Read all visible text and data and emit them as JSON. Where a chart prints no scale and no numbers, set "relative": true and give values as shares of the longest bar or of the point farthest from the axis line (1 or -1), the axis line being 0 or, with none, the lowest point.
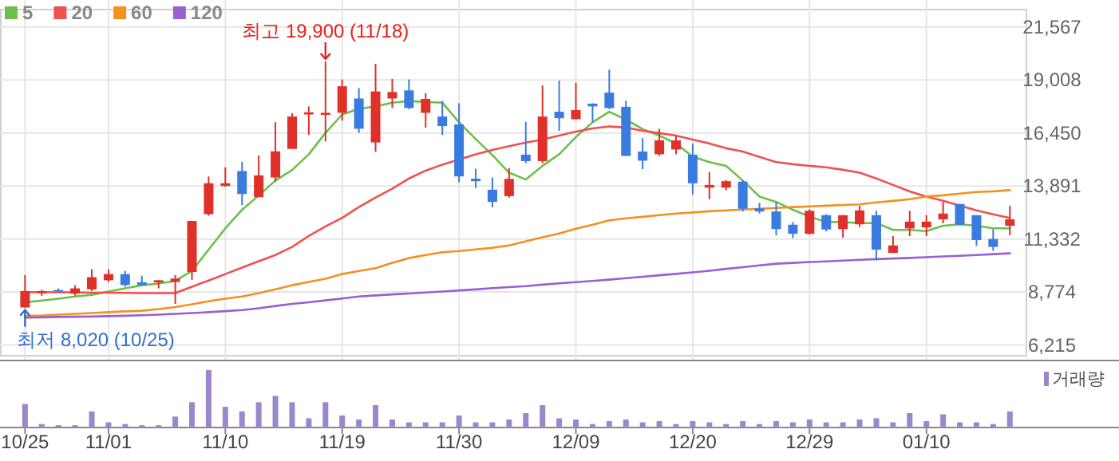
{
  "chart_data": [
    {
      "type": "candlestick",
      "tick_labels": "y",
      "grid": true,
      "legend": "top left",
      "categories": [
        "10/25",
        null,
        null,
        null,
        null,
        "11/01",
        null,
        null,
        null,
        null,
        null,
        null,
        "11/10",
        null,
        null,
        null,
        null,
        null,
        null,
        "11/19",
        null,
        null,
        null,
        null,
        null,
        null,
        "11/30",
        null,
        null,
        null,
        null,
        null,
        null,
        "12/09",
        null,
        null,
        null,
        null,
        null,
        null,
        "12/20",
        null,
        null,
        null,
        null,
        null,
        null,
        "12/29",
        null,
        null,
        null,
        null,
        null,
        null,
        "01/10",
        null,
        null,
        null,
        null,
        null
      ],
      "ylim": [
        5700,
        22400
      ],
      "yticks": [
        {
          "value": 6215,
          "label": "6,215"
        },
        {
          "value": 8774,
          "label": "8,774"
        },
        {
          "value": 11332,
          "label": "11,332"
        },
        {
          "value": 13891,
          "label": "13,891"
        },
        {
          "value": 16450,
          "label": "16,450"
        },
        {
          "value": 19008,
          "label": "19,008"
        },
        {
          "value": 21567,
          "label": "21,567"
        }
      ],
      "ohlc": [
        [
          8030,
          9590,
          8020,
          8820
        ],
        [
          8720,
          8870,
          8590,
          8820
        ],
        [
          8870,
          8950,
          8760,
          8820
        ],
        [
          8690,
          9100,
          8600,
          8950
        ],
        [
          8900,
          9870,
          8820,
          9490
        ],
        [
          9340,
          9870,
          9260,
          9640
        ],
        [
          9640,
          9790,
          9030,
          9110
        ],
        [
          9240,
          9560,
          9110,
          9110
        ],
        [
          9240,
          9340,
          8950,
          9340
        ],
        [
          9260,
          9590,
          8200,
          9420
        ],
        [
          9740,
          12200,
          9360,
          12200
        ],
        [
          12530,
          14350,
          12450,
          14020
        ],
        [
          13890,
          14790,
          13850,
          14020
        ],
        [
          14610,
          15050,
          12960,
          13500
        ],
        [
          13350,
          15360,
          13350,
          14400
        ],
        [
          14300,
          16970,
          14100,
          15560
        ],
        [
          15680,
          17400,
          15680,
          17240
        ],
        [
          17340,
          17730,
          16350,
          17440
        ],
        [
          17320,
          19900,
          16040,
          17420
        ],
        [
          17420,
          19030,
          17040,
          18700
        ],
        [
          18110,
          18610,
          16450,
          16650
        ],
        [
          15990,
          19780,
          15540,
          18450
        ],
        [
          18110,
          19060,
          17650,
          18420
        ],
        [
          18500,
          19030,
          17600,
          17650
        ],
        [
          17420,
          18370,
          16710,
          18090
        ],
        [
          17240,
          18000,
          16350,
          16780
        ],
        [
          16860,
          17880,
          14070,
          14350
        ],
        [
          14240,
          14720,
          13800,
          14120
        ],
        [
          13710,
          14300,
          12860,
          13120
        ],
        [
          13400,
          14750,
          13330,
          14230
        ],
        [
          15400,
          16980,
          14990,
          15090
        ],
        [
          15090,
          18740,
          14990,
          17240
        ],
        [
          17470,
          18970,
          16550,
          17160
        ],
        [
          17110,
          18870,
          17110,
          17550
        ],
        [
          17860,
          17880,
          16960,
          17730
        ],
        [
          18390,
          19500,
          17600,
          17650
        ],
        [
          17710,
          18000,
          15340,
          15340
        ],
        [
          15550,
          16200,
          14700,
          15110
        ],
        [
          15420,
          16650,
          15340,
          16090
        ],
        [
          15650,
          16320,
          15420,
          16090
        ],
        [
          15400,
          15940,
          13480,
          14020
        ],
        [
          13810,
          14560,
          13250,
          13940
        ],
        [
          13810,
          14170,
          13680,
          14120
        ],
        [
          14100,
          14170,
          12660,
          12790
        ],
        [
          12810,
          13070,
          12560,
          12660
        ],
        [
          12660,
          13120,
          11500,
          11810
        ],
        [
          12020,
          12150,
          11370,
          11580
        ],
        [
          11580,
          12760,
          11550,
          12690
        ],
        [
          12480,
          12530,
          11700,
          11790
        ],
        [
          11810,
          12480,
          11390,
          12480
        ],
        [
          12040,
          12940,
          11910,
          12710
        ],
        [
          12480,
          12690,
          10300,
          10820
        ],
        [
          10660,
          11470,
          10660,
          11020
        ],
        [
          11840,
          12690,
          11470,
          12170
        ],
        [
          11890,
          12480,
          11470,
          12170
        ],
        [
          12280,
          13120,
          12090,
          12560
        ],
        [
          13020,
          13020,
          12020,
          12020
        ],
        [
          12480,
          12480,
          11000,
          11280
        ],
        [
          11330,
          11800,
          10760,
          10950
        ],
        [
          11970,
          12940,
          11510,
          12280
        ]
      ],
      "colors": [
        "#e0302a",
        "#e0302a",
        "#3a7be0",
        "#e0302a",
        "#e0302a",
        "#e0302a",
        "#3a7be0",
        "#3a7be0",
        "#e0302a",
        "#e0302a",
        "#e0302a",
        "#e0302a",
        "#e0302a",
        "#3a7be0",
        "#e0302a",
        "#e0302a",
        "#e0302a",
        "#e0302a",
        "#e0302a",
        "#e0302a",
        "#3a7be0",
        "#e0302a",
        "#e0302a",
        "#3a7be0",
        "#e0302a",
        "#3a7be0",
        "#3a7be0",
        "#3a7be0",
        "#3a7be0",
        "#e0302a",
        "#3a7be0",
        "#e0302a",
        "#3a7be0",
        "#e0302a",
        "#3a7be0",
        "#3a7be0",
        "#3a7be0",
        "#3a7be0",
        "#e0302a",
        "#e0302a",
        "#3a7be0",
        "#e0302a",
        "#e0302a",
        "#3a7be0",
        "#3a7be0",
        "#3a7be0",
        "#3a7be0",
        "#e0302a",
        "#3a7be0",
        "#e0302a",
        "#e0302a",
        "#3a7be0",
        "#e0302a",
        "#e0302a",
        "#e0302a",
        "#e0302a",
        "#3a7be0",
        "#3a7be0",
        "#3a7be0",
        "#e0302a"
      ],
      "series": [
        {
          "name": "5",
          "type": "line",
          "color": "#6cc04a",
          "values": [
            8280,
            8360,
            8450,
            8560,
            8640,
            8800,
            8950,
            9100,
            9180,
            9310,
            9790,
            10820,
            11850,
            12740,
            13430,
            14150,
            14660,
            15420,
            16450,
            17340,
            17610,
            17730,
            17910,
            17990,
            17940,
            17910,
            16960,
            16150,
            15380,
            14530,
            14200,
            14860,
            15420,
            16250,
            16960,
            17470,
            17090,
            16630,
            16320,
            15940,
            15300,
            15040,
            14860,
            14150,
            13380,
            13120,
            12740,
            12410,
            12150,
            12150,
            12100,
            12100,
            11770,
            11770,
            11710,
            11970,
            12040,
            11970,
            11850,
            11850
          ]
        },
        {
          "name": "20",
          "type": "line",
          "color": "#f05050",
          "values": [
            8770,
            8770,
            8760,
            8760,
            8740,
            8740,
            8730,
            8720,
            8720,
            8720,
            9030,
            9330,
            9640,
            9950,
            10260,
            10560,
            10950,
            11480,
            11940,
            12350,
            12870,
            13330,
            13760,
            14250,
            14630,
            14920,
            15170,
            15420,
            15630,
            15810,
            15980,
            16130,
            16320,
            16510,
            16670,
            16760,
            16710,
            16550,
            16440,
            16320,
            16130,
            15940,
            15710,
            15550,
            15290,
            15040,
            14940,
            14860,
            14790,
            14670,
            14530,
            14250,
            13940,
            13630,
            13380,
            13170,
            12940,
            12710,
            12520,
            12350
          ]
        },
        {
          "name": "60",
          "type": "line",
          "color": "#f5901e",
          "values": [
            7620,
            7640,
            7680,
            7720,
            7760,
            7800,
            7840,
            7870,
            7950,
            8050,
            8180,
            8330,
            8450,
            8560,
            8720,
            8900,
            9100,
            9260,
            9410,
            9640,
            9790,
            9920,
            10180,
            10410,
            10560,
            10690,
            10750,
            10830,
            10910,
            11020,
            11220,
            11410,
            11600,
            11830,
            12020,
            12230,
            12330,
            12400,
            12480,
            12560,
            12610,
            12670,
            12710,
            12750,
            12790,
            12830,
            12870,
            12900,
            12940,
            12970,
            13000,
            13100,
            13170,
            13250,
            13380,
            13440,
            13520,
            13600,
            13630,
            13690
          ]
        },
        {
          "name": "120",
          "type": "line",
          "color": "#9a5fd0",
          "values": [
            7540,
            7550,
            7570,
            7580,
            7590,
            7610,
            7630,
            7650,
            7680,
            7720,
            7760,
            7800,
            7850,
            7900,
            7990,
            8100,
            8200,
            8280,
            8370,
            8460,
            8560,
            8610,
            8660,
            8700,
            8750,
            8800,
            8850,
            8900,
            8960,
            9010,
            9060,
            9130,
            9190,
            9250,
            9310,
            9370,
            9440,
            9510,
            9580,
            9650,
            9720,
            9800,
            9890,
            9970,
            10060,
            10140,
            10180,
            10220,
            10250,
            10290,
            10330,
            10360,
            10390,
            10420,
            10450,
            10490,
            10520,
            10560,
            10600,
            10640
          ]
        }
      ],
      "annotations": [
        {
          "text": "최고 19,900 (11/18)",
          "y": 19900
        },
        {
          "text": "최저 8,020 (10/25)",
          "x": "10/25",
          "y": 8020
        }
      ]
    },
    {
      "type": "bar",
      "relative": true,
      "tick_labels": "x",
      "legend": "top right",
      "categories": [
        "10/25",
        null,
        null,
        null,
        null,
        "11/01",
        null,
        null,
        null,
        null,
        null,
        null,
        "11/10",
        null,
        null,
        null,
        null,
        null,
        null,
        "11/19",
        null,
        null,
        null,
        null,
        null,
        null,
        "11/30",
        null,
        null,
        null,
        null,
        null,
        null,
        "12/09",
        null,
        null,
        null,
        null,
        null,
        null,
        "12/20",
        null,
        null,
        null,
        null,
        null,
        null,
        "12/29",
        null,
        null,
        null,
        null,
        null,
        null,
        "01/10",
        null,
        null,
        null,
        null,
        null
      ],
      "series": [
        {
          "name": "거래량",
          "color": "#9b87cb",
          "values": [
            0.41,
            0.06,
            0.04,
            0.04,
            0.28,
            0.09,
            0.06,
            0.04,
            0.04,
            0.19,
            0.44,
            1,
            0.36,
            0.28,
            0.44,
            0.55,
            0.44,
            0.16,
            0.44,
            0.21,
            0.14,
            0.39,
            0.14,
            0.09,
            0.09,
            0.09,
            0.21,
            0.09,
            0.09,
            0.14,
            0.25,
            0.39,
            0.16,
            0.14,
            0.06,
            0.11,
            0.14,
            0.09,
            0.11,
            0.06,
            0.11,
            0.09,
            0.06,
            0.11,
            0.06,
            0.11,
            0.09,
            0.14,
            0.09,
            0.09,
            0.14,
            0.16,
            0.09,
            0.25,
            0.11,
            0.23,
            0.09,
            0.09,
            0.06,
            0.28
          ]
        }
      ]
    }
  ]
}
